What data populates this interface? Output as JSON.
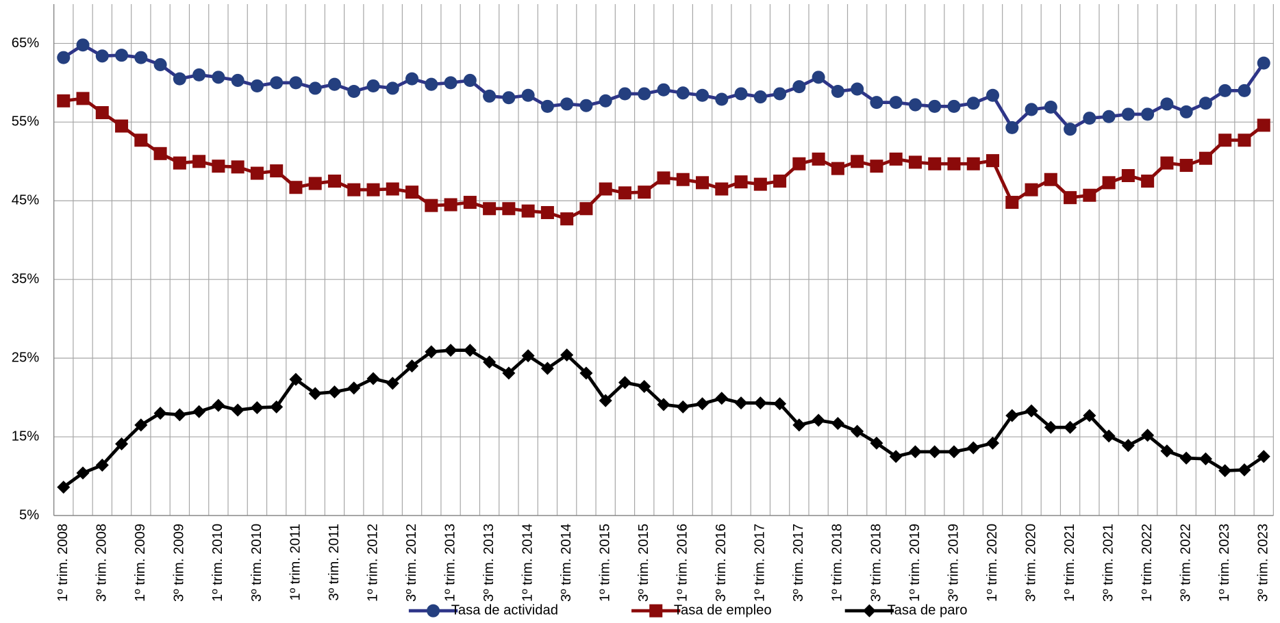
{
  "chart_data": {
    "type": "line",
    "categories": [
      "1º trim. 2008",
      null,
      "3º trim. 2008",
      null,
      "1º trim. 2009",
      null,
      "3º trim. 2009",
      null,
      "1º trim. 2010",
      null,
      "3º trim. 2010",
      null,
      "1º trim. 2011",
      null,
      "3º trim. 2011",
      null,
      "1º trim. 2012",
      null,
      "3º trim. 2012",
      null,
      "1º trim. 2013",
      null,
      "3º trim. 2013",
      null,
      "1º trim. 2014",
      null,
      "3º trim. 2014",
      null,
      "1º trim. 2015",
      null,
      "3º trim. 2015",
      null,
      "1º trim. 2016",
      null,
      "3º trim. 2016",
      null,
      "1º trim. 2017",
      null,
      "3º trim. 2017",
      null,
      "1º trim. 2018",
      null,
      "3º trim. 2018",
      null,
      "1º trim. 2019",
      null,
      "3º trim. 2019",
      null,
      "1º trim. 2020",
      null,
      "3º trim. 2020",
      null,
      "1º trim. 2021",
      null,
      "3º trim. 2021",
      null,
      "1º trim. 2022",
      null,
      "3º trim. 2022",
      null,
      "1º trim. 2023",
      null,
      "3º trim. 2023"
    ],
    "series": [
      {
        "name": "Tasa de actividad",
        "color": "#2e3588",
        "marker": "circle",
        "values": [
          63.2,
          64.8,
          63.4,
          63.5,
          63.2,
          62.3,
          60.5,
          61.0,
          60.7,
          60.3,
          59.6,
          60.0,
          60.0,
          59.3,
          59.8,
          58.9,
          59.6,
          59.3,
          60.5,
          59.8,
          60.0,
          60.3,
          58.3,
          58.1,
          58.4,
          57.0,
          57.3,
          57.1,
          57.7,
          58.6,
          58.6,
          59.1,
          58.7,
          58.4,
          57.9,
          58.6,
          58.2,
          58.6,
          59.5,
          60.7,
          58.9,
          59.2,
          57.5,
          57.5,
          57.2,
          57.0,
          57.0,
          57.4,
          58.4,
          54.3,
          56.6,
          56.9,
          54.1,
          55.5,
          55.7,
          56.0,
          56.0,
          57.3,
          56.3,
          57.4,
          59.0,
          59.0,
          62.5
        ]
      },
      {
        "name": "Tasa de empleo",
        "color": "#8b0a0a",
        "marker": "square",
        "values": [
          57.7,
          58.0,
          56.2,
          54.5,
          52.7,
          51.0,
          49.8,
          50.0,
          49.4,
          49.3,
          48.5,
          48.8,
          46.7,
          47.2,
          47.5,
          46.4,
          46.4,
          46.5,
          46.1,
          44.4,
          44.5,
          44.8,
          44.0,
          44.0,
          43.7,
          43.5,
          42.7,
          44.0,
          46.5,
          46.0,
          46.1,
          47.9,
          47.7,
          47.3,
          46.5,
          47.4,
          47.1,
          47.5,
          49.7,
          50.3,
          49.1,
          50.0,
          49.4,
          50.3,
          49.9,
          49.7,
          49.7,
          49.7,
          50.1,
          44.8,
          46.4,
          47.7,
          45.4,
          45.7,
          47.3,
          48.2,
          47.5,
          49.8,
          49.5,
          50.4,
          52.7,
          52.7,
          54.6
        ]
      },
      {
        "name": "Tasa de paro",
        "color": "#000000",
        "marker": "diamond",
        "values": [
          8.6,
          10.4,
          11.4,
          14.1,
          16.5,
          18.0,
          17.8,
          18.2,
          19.0,
          18.4,
          18.7,
          18.8,
          22.3,
          20.5,
          20.7,
          21.2,
          22.4,
          21.8,
          24.0,
          25.8,
          26.0,
          26.0,
          24.5,
          23.1,
          25.3,
          23.7,
          25.4,
          23.1,
          19.6,
          21.9,
          21.4,
          19.1,
          18.8,
          19.2,
          19.9,
          19.3,
          19.3,
          19.2,
          16.5,
          17.1,
          16.7,
          15.7,
          14.2,
          12.5,
          13.1,
          13.1,
          13.1,
          13.6,
          14.2,
          17.7,
          18.3,
          16.2,
          16.2,
          17.7,
          15.1,
          13.9,
          15.2,
          13.2,
          12.3,
          12.2,
          10.7,
          10.8,
          12.5
        ]
      }
    ],
    "ylim": [
      5,
      70
    ],
    "yticks": [
      {
        "value": 5,
        "label": "5%"
      },
      {
        "value": 15,
        "label": "15%"
      },
      {
        "value": 25,
        "label": "25%"
      },
      {
        "value": 35,
        "label": "35%"
      },
      {
        "value": 45,
        "label": "45%"
      },
      {
        "value": 55,
        "label": "55%"
      },
      {
        "value": 65,
        "label": "65%"
      }
    ],
    "grid": true,
    "legend": "bottom"
  }
}
